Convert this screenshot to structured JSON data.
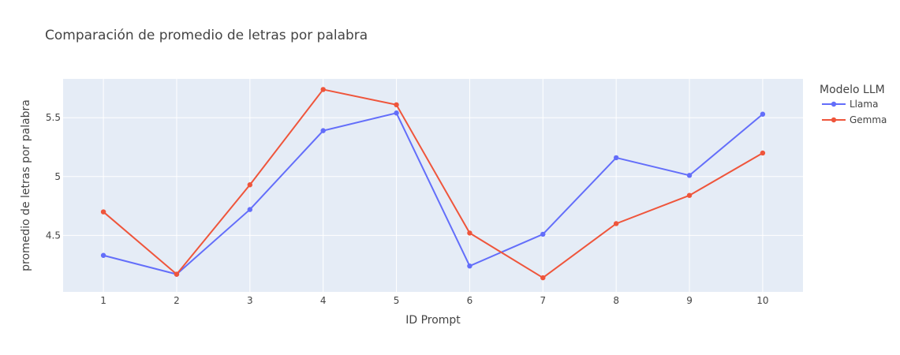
{
  "chart_data": {
    "type": "line",
    "title": "Comparación de promedio de letras por palabra",
    "xlabel": "ID Prompt",
    "ylabel": "promedio de letras por palabra",
    "x": [
      1,
      2,
      3,
      4,
      5,
      6,
      7,
      8,
      9,
      10
    ],
    "x_tick_labels": [
      "1",
      "2",
      "3",
      "4",
      "5",
      "6",
      "7",
      "8",
      "9",
      "10"
    ],
    "y_ticks": [
      4.5,
      5,
      5.5
    ],
    "y_tick_labels": [
      "4.5",
      "5",
      "5.5"
    ],
    "xlim": [
      0.45,
      10.55
    ],
    "ylim": [
      4.02,
      5.83
    ],
    "grid": true,
    "legend": {
      "title": "Modelo LLM",
      "position": "right"
    },
    "series": [
      {
        "name": "Llama",
        "color": "#636efa",
        "values": [
          4.33,
          4.17,
          4.72,
          5.39,
          5.54,
          4.24,
          4.51,
          5.16,
          5.01,
          5.53
        ]
      },
      {
        "name": "Gemma",
        "color": "#ef553b",
        "values": [
          4.7,
          4.17,
          4.93,
          5.74,
          5.61,
          4.52,
          4.14,
          4.6,
          4.84,
          5.2
        ]
      }
    ],
    "colors": {
      "plot_background": "#e5ecf6",
      "grid": "#ffffff",
      "text": "#444444"
    }
  }
}
